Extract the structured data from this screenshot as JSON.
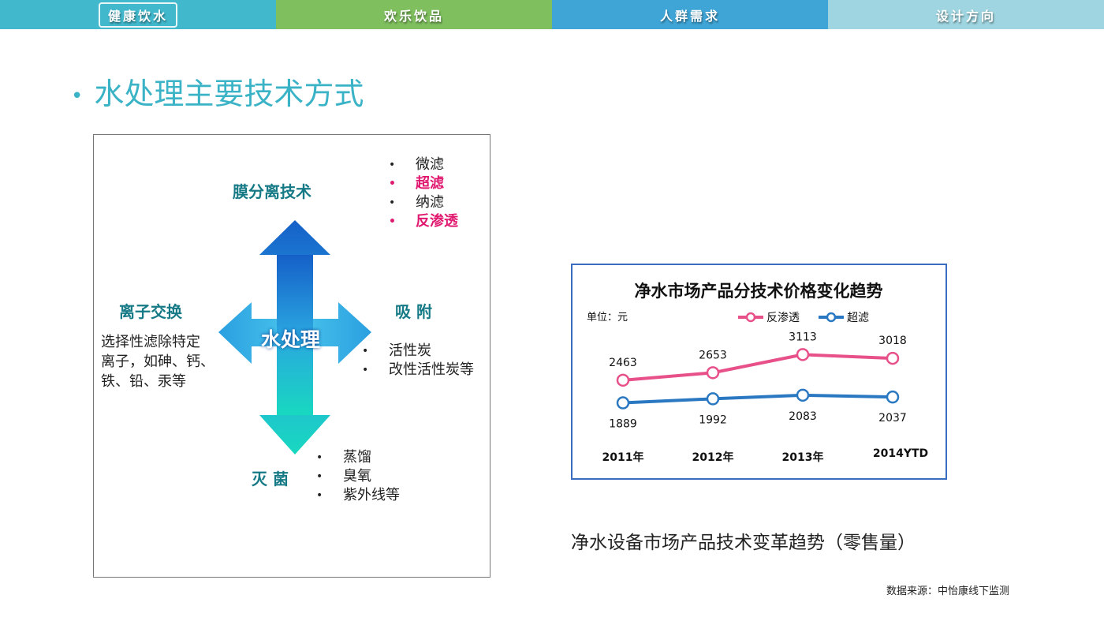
{
  "nav": [
    {
      "label": "健康饮水",
      "color": "#42b8cc",
      "active": true
    },
    {
      "label": "欢乐饮品",
      "color": "#7fbf5e"
    },
    {
      "label": "人群需求",
      "color": "#3fa5d6"
    },
    {
      "label": "设计方向",
      "color": "#9fd5e0"
    }
  ],
  "title": "水处理主要技术方式",
  "diagram": {
    "center": "水处理",
    "top": {
      "heading": "膜分离技术",
      "items": [
        {
          "t": "微滤",
          "hi": false
        },
        {
          "t": "超滤",
          "hi": true
        },
        {
          "t": "纳滤",
          "hi": false
        },
        {
          "t": "反渗透",
          "hi": true
        }
      ]
    },
    "left": {
      "heading": "离子交换",
      "desc": [
        "选择性滤除特定",
        "离子，如砷、钙、",
        "铁、铅、汞等"
      ]
    },
    "right": {
      "heading": "吸 附",
      "items": [
        "活性炭",
        "改性活性炭等"
      ]
    },
    "bottom": {
      "heading": "灭 菌",
      "items": [
        "蒸馏",
        "臭氧",
        "紫外线等"
      ]
    }
  },
  "chart_data": {
    "type": "line",
    "title": "净水市场产品分技术价格变化趋势",
    "unit": "单位：元",
    "categories": [
      "2011年",
      "2012年",
      "2013年",
      "2014YTD"
    ],
    "series": [
      {
        "name": "反渗透",
        "color": "#e8508a",
        "values": [
          2463,
          2653,
          3113,
          3018
        ]
      },
      {
        "name": "超滤",
        "color": "#2a78c2",
        "values": [
          1889,
          1992,
          2083,
          2037
        ]
      }
    ],
    "ylim": [
      1700,
      3300
    ],
    "grid": false,
    "legend": "top-right"
  },
  "caption": "净水设备市场产品技术变革趋势（零售量）",
  "source": "数据来源：中怡康线下监测"
}
